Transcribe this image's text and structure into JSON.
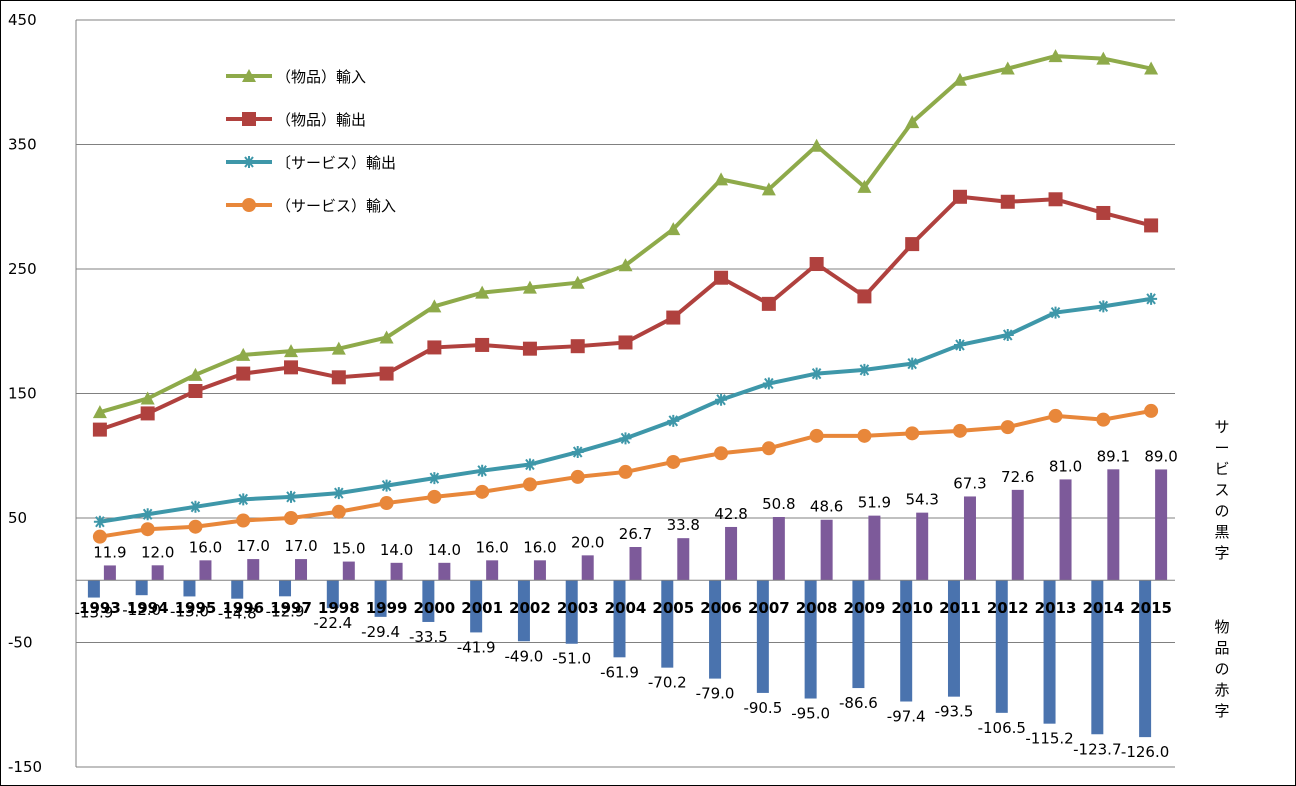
{
  "chart_data": {
    "type": "line",
    "title": "",
    "xlabel": "",
    "ylabel": "",
    "ylim": [
      -150,
      450
    ],
    "yticks": [
      -150,
      -50,
      50,
      150,
      250,
      350,
      450
    ],
    "grid": true,
    "legend_position": "top-left",
    "categories": [
      "1993",
      "1994",
      "1995",
      "1996",
      "1997",
      "1998",
      "1999",
      "2000",
      "2001",
      "2002",
      "2003",
      "2004",
      "2005",
      "2006",
      "2007",
      "2008",
      "2009",
      "2010",
      "2011",
      "2012",
      "2013",
      "2014",
      "2015"
    ],
    "series": [
      {
        "name": "（物品）輸入",
        "kind": "line",
        "marker": "triangle",
        "color": "#8EAA4A",
        "values": [
          135,
          146,
          165,
          181,
          184,
          186,
          195,
          220,
          231,
          235,
          239,
          253,
          282,
          322,
          314,
          349,
          316,
          368,
          402,
          411,
          421,
          419,
          411
        ]
      },
      {
        "name": "（物品）輸出",
        "kind": "line",
        "marker": "square",
        "color": "#B0413E",
        "values": [
          121,
          134,
          152,
          166,
          171,
          163,
          166,
          187,
          189,
          186,
          188,
          191,
          211,
          243,
          222,
          254,
          228,
          270,
          308,
          304,
          306,
          295,
          285
        ]
      },
      {
        "name": "〔サービス）輸出",
        "kind": "line",
        "marker": "star",
        "color": "#3E97A9",
        "values": [
          47,
          53,
          59,
          65,
          67,
          70,
          76,
          82,
          88,
          93,
          103,
          114,
          128,
          145,
          158,
          166,
          169,
          174,
          189,
          197,
          215,
          220,
          226
        ]
      },
      {
        "name": "（サービス）輸入",
        "kind": "line",
        "marker": "circle",
        "color": "#E8873A",
        "values": [
          35,
          41,
          43,
          48,
          50,
          55,
          62,
          67,
          71,
          77,
          83,
          87,
          95,
          102,
          106,
          116,
          116,
          118,
          120,
          123,
          132,
          129,
          136
        ]
      },
      {
        "name": "サービスの黒字",
        "kind": "bar",
        "color": "#7D5A9A",
        "values": [
          11.9,
          12.0,
          16.0,
          17.0,
          17.0,
          15.0,
          14.0,
          14.0,
          16.0,
          16.0,
          20.0,
          26.7,
          33.8,
          42.8,
          50.8,
          48.6,
          51.9,
          54.3,
          67.3,
          72.6,
          81.0,
          89.1,
          89.0
        ],
        "labels": [
          "11.9",
          "12.0",
          "16.0",
          "17.0",
          "17.0",
          "15.0",
          "14.0",
          "14.0",
          "16.0",
          "16.0",
          "20.0",
          "26.7",
          "33.8",
          "42.8",
          "50.8",
          "48.6",
          "51.9",
          "54.3",
          "67.3",
          "72.6",
          "81.0",
          "89.1",
          "89.0"
        ]
      },
      {
        "name": "物品の赤字",
        "kind": "bar",
        "color": "#4A73AE",
        "values": [
          -13.9,
          -12.0,
          -13.0,
          -14.8,
          -12.9,
          -22.4,
          -29.4,
          -33.5,
          -41.9,
          -49.0,
          -51.0,
          -61.9,
          -70.2,
          -79.0,
          -90.5,
          -95.0,
          -86.6,
          -97.4,
          -93.5,
          -106.5,
          -115.2,
          -123.7,
          -126.0
        ],
        "labels": [
          "-13.9",
          "-12.0",
          "-13.0",
          "-14.8",
          "-12.9",
          "-22.4",
          "-29.4",
          "-33.5",
          "-41.9",
          "-49.0",
          "-51.0",
          "-61.9",
          "-70.2",
          "-79.0",
          "-90.5",
          "-95.0",
          "-86.6",
          "-97.4",
          "-93.5",
          "-106.5",
          "-115.2",
          "-123.7",
          "-126.0"
        ]
      }
    ],
    "side_labels": [
      "サービスの黒字",
      "物品の赤字"
    ]
  }
}
